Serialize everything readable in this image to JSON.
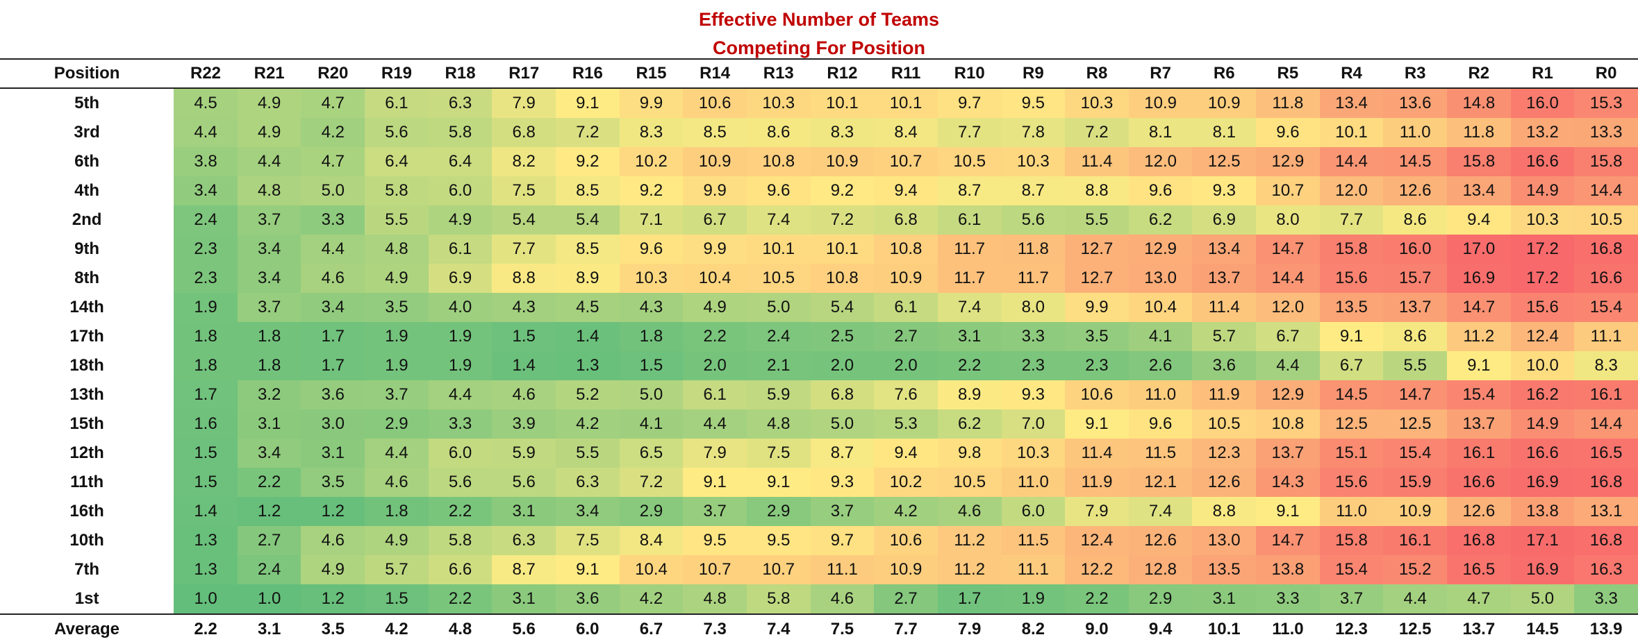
{
  "chart_data": {
    "type": "heatmap",
    "title": [
      "Effective Number of Teams",
      "Competing For Position"
    ],
    "row_header": "Position",
    "columns": [
      "R22",
      "R21",
      "R20",
      "R19",
      "R18",
      "R17",
      "R16",
      "R15",
      "R14",
      "R13",
      "R12",
      "R11",
      "R10",
      "R9",
      "R8",
      "R7",
      "R6",
      "R5",
      "R4",
      "R3",
      "R2",
      "R1",
      "R0"
    ],
    "rows": [
      {
        "label": "5th",
        "values": [
          "4.5",
          "4.9",
          "4.7",
          "6.1",
          "6.3",
          "7.9",
          "9.1",
          "9.9",
          "10.6",
          "10.3",
          "10.1",
          "10.1",
          "9.7",
          "9.5",
          "10.3",
          "10.9",
          "10.9",
          "11.8",
          "13.4",
          "13.6",
          "14.8",
          "16.0",
          "15.3"
        ]
      },
      {
        "label": "3rd",
        "values": [
          "4.4",
          "4.9",
          "4.2",
          "5.6",
          "5.8",
          "6.8",
          "7.2",
          "8.3",
          "8.5",
          "8.6",
          "8.3",
          "8.4",
          "7.7",
          "7.8",
          "7.2",
          "8.1",
          "8.1",
          "9.6",
          "10.1",
          "11.0",
          "11.8",
          "13.2",
          "13.3"
        ]
      },
      {
        "label": "6th",
        "values": [
          "3.8",
          "4.4",
          "4.7",
          "6.4",
          "6.4",
          "8.2",
          "9.2",
          "10.2",
          "10.9",
          "10.8",
          "10.9",
          "10.7",
          "10.5",
          "10.3",
          "11.4",
          "12.0",
          "12.5",
          "12.9",
          "14.4",
          "14.5",
          "15.8",
          "16.6",
          "15.8"
        ]
      },
      {
        "label": "4th",
        "values": [
          "3.4",
          "4.8",
          "5.0",
          "5.8",
          "6.0",
          "7.5",
          "8.5",
          "9.2",
          "9.9",
          "9.6",
          "9.2",
          "9.4",
          "8.7",
          "8.7",
          "8.8",
          "9.6",
          "9.3",
          "10.7",
          "12.0",
          "12.6",
          "13.4",
          "14.9",
          "14.4"
        ]
      },
      {
        "label": "2nd",
        "values": [
          "2.4",
          "3.7",
          "3.3",
          "5.5",
          "4.9",
          "5.4",
          "5.4",
          "7.1",
          "6.7",
          "7.4",
          "7.2",
          "6.8",
          "6.1",
          "5.6",
          "5.5",
          "6.2",
          "6.9",
          "8.0",
          "7.7",
          "8.6",
          "9.4",
          "10.3",
          "10.5"
        ]
      },
      {
        "label": "9th",
        "values": [
          "2.3",
          "3.4",
          "4.4",
          "4.8",
          "6.1",
          "7.7",
          "8.5",
          "9.6",
          "9.9",
          "10.1",
          "10.1",
          "10.8",
          "11.7",
          "11.8",
          "12.7",
          "12.9",
          "13.4",
          "14.7",
          "15.8",
          "16.0",
          "17.0",
          "17.2",
          "16.8"
        ]
      },
      {
        "label": "8th",
        "values": [
          "2.3",
          "3.4",
          "4.6",
          "4.9",
          "6.9",
          "8.8",
          "8.9",
          "10.3",
          "10.4",
          "10.5",
          "10.8",
          "10.9",
          "11.7",
          "11.7",
          "12.7",
          "13.0",
          "13.7",
          "14.4",
          "15.6",
          "15.7",
          "16.9",
          "17.2",
          "16.6"
        ]
      },
      {
        "label": "14th",
        "values": [
          "1.9",
          "3.7",
          "3.4",
          "3.5",
          "4.0",
          "4.3",
          "4.5",
          "4.3",
          "4.9",
          "5.0",
          "5.4",
          "6.1",
          "7.4",
          "8.0",
          "9.9",
          "10.4",
          "11.4",
          "12.0",
          "13.5",
          "13.7",
          "14.7",
          "15.6",
          "15.4"
        ]
      },
      {
        "label": "17th",
        "values": [
          "1.8",
          "1.8",
          "1.7",
          "1.9",
          "1.9",
          "1.5",
          "1.4",
          "1.8",
          "2.2",
          "2.4",
          "2.5",
          "2.7",
          "3.1",
          "3.3",
          "3.5",
          "4.1",
          "5.7",
          "6.7",
          "9.1",
          "8.6",
          "11.2",
          "12.4",
          "11.1"
        ]
      },
      {
        "label": "18th",
        "values": [
          "1.8",
          "1.8",
          "1.7",
          "1.9",
          "1.9",
          "1.4",
          "1.3",
          "1.5",
          "2.0",
          "2.1",
          "2.0",
          "2.0",
          "2.2",
          "2.3",
          "2.3",
          "2.6",
          "3.6",
          "4.4",
          "6.7",
          "5.5",
          "9.1",
          "10.0",
          "8.3"
        ]
      },
      {
        "label": "13th",
        "values": [
          "1.7",
          "3.2",
          "3.6",
          "3.7",
          "4.4",
          "4.6",
          "5.2",
          "5.0",
          "6.1",
          "5.9",
          "6.8",
          "7.6",
          "8.9",
          "9.3",
          "10.6",
          "11.0",
          "11.9",
          "12.9",
          "14.5",
          "14.7",
          "15.4",
          "16.2",
          "16.1"
        ]
      },
      {
        "label": "15th",
        "values": [
          "1.6",
          "3.1",
          "3.0",
          "2.9",
          "3.3",
          "3.9",
          "4.2",
          "4.1",
          "4.4",
          "4.8",
          "5.0",
          "5.3",
          "6.2",
          "7.0",
          "9.1",
          "9.6",
          "10.5",
          "10.8",
          "12.5",
          "12.5",
          "13.7",
          "14.9",
          "14.4"
        ]
      },
      {
        "label": "12th",
        "values": [
          "1.5",
          "3.4",
          "3.1",
          "4.4",
          "6.0",
          "5.9",
          "5.5",
          "6.5",
          "7.9",
          "7.5",
          "8.7",
          "9.4",
          "9.8",
          "10.3",
          "11.4",
          "11.5",
          "12.3",
          "13.7",
          "15.1",
          "15.4",
          "16.1",
          "16.6",
          "16.5"
        ]
      },
      {
        "label": "11th",
        "values": [
          "1.5",
          "2.2",
          "3.5",
          "4.6",
          "5.6",
          "5.6",
          "6.3",
          "7.2",
          "9.1",
          "9.1",
          "9.3",
          "10.2",
          "10.5",
          "11.0",
          "11.9",
          "12.1",
          "12.6",
          "14.3",
          "15.6",
          "15.9",
          "16.6",
          "16.9",
          "16.8"
        ]
      },
      {
        "label": "16th",
        "values": [
          "1.4",
          "1.2",
          "1.2",
          "1.8",
          "2.2",
          "3.1",
          "3.4",
          "2.9",
          "3.7",
          "2.9",
          "3.7",
          "4.2",
          "4.6",
          "6.0",
          "7.9",
          "7.4",
          "8.8",
          "9.1",
          "11.0",
          "10.9",
          "12.6",
          "13.8",
          "13.1"
        ]
      },
      {
        "label": "10th",
        "values": [
          "1.3",
          "2.7",
          "4.6",
          "4.9",
          "5.8",
          "6.3",
          "7.5",
          "8.4",
          "9.5",
          "9.5",
          "9.7",
          "10.6",
          "11.2",
          "11.5",
          "12.4",
          "12.6",
          "13.0",
          "14.7",
          "15.8",
          "16.1",
          "16.8",
          "17.1",
          "16.8"
        ]
      },
      {
        "label": "7th",
        "values": [
          "1.3",
          "2.4",
          "4.9",
          "5.7",
          "6.6",
          "8.7",
          "9.1",
          "10.4",
          "10.7",
          "10.7",
          "11.1",
          "10.9",
          "11.2",
          "11.1",
          "12.2",
          "12.8",
          "13.5",
          "13.8",
          "15.4",
          "15.2",
          "16.5",
          "16.9",
          "16.3"
        ]
      },
      {
        "label": "1st",
        "values": [
          "1.0",
          "1.0",
          "1.2",
          "1.5",
          "2.2",
          "3.1",
          "3.6",
          "4.2",
          "4.8",
          "5.8",
          "4.6",
          "2.7",
          "1.7",
          "1.9",
          "2.2",
          "2.9",
          "3.1",
          "3.3",
          "3.7",
          "4.4",
          "4.7",
          "5.0",
          "3.3"
        ]
      }
    ],
    "average": {
      "label": "Average",
      "values": [
        "2.2",
        "3.1",
        "3.5",
        "4.2",
        "4.8",
        "5.6",
        "6.0",
        "6.7",
        "7.3",
        "7.4",
        "7.5",
        "7.7",
        "7.9",
        "8.2",
        "9.0",
        "9.4",
        "10.1",
        "11.0",
        "12.3",
        "12.5",
        "13.7",
        "14.5",
        "13.9"
      ]
    },
    "color_scale": {
      "min_value": 1.0,
      "max_value": 17.2,
      "low_color": "#63be7b",
      "mid_color": "#ffeb84",
      "high_color": "#f8696b"
    }
  }
}
